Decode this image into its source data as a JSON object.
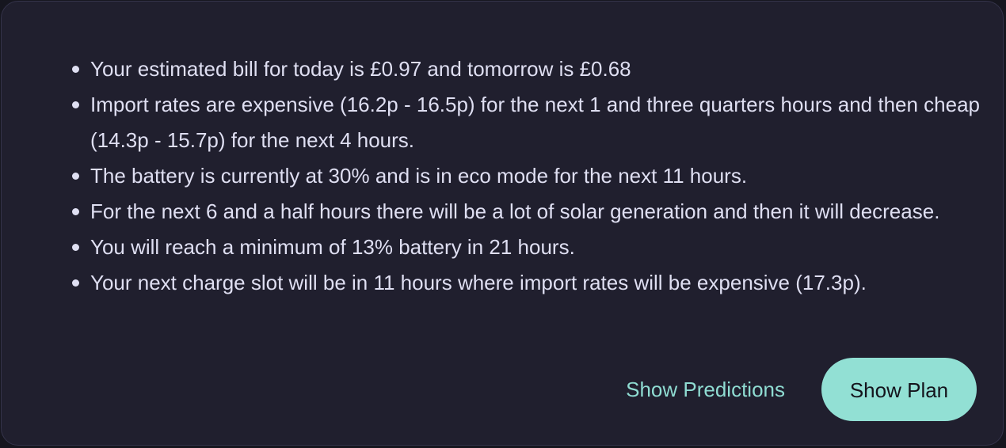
{
  "summary": {
    "items": [
      "Your estimated bill for today is £0.97 and tomorrow is £0.68",
      "Import rates are expensive (16.2p - 16.5p) for the next 1 and three quarters hours and then cheap (14.3p - 15.7p) for the next 4 hours.",
      "The battery is currently at 30% and is in eco mode for the next 11 hours.",
      "For the next 6 and a half hours there will be a lot of solar generation and then it will decrease.",
      "You will reach a minimum of 13% battery in 21 hours.",
      "Your next charge slot will be in 11 hours where import rates will be expensive (17.3p)."
    ]
  },
  "actions": {
    "predictions_label": "Show Predictions",
    "plan_label": "Show Plan"
  },
  "colors": {
    "card_background": "#201f2e",
    "text": "#dfdff2",
    "accent": "#92e0d4"
  }
}
